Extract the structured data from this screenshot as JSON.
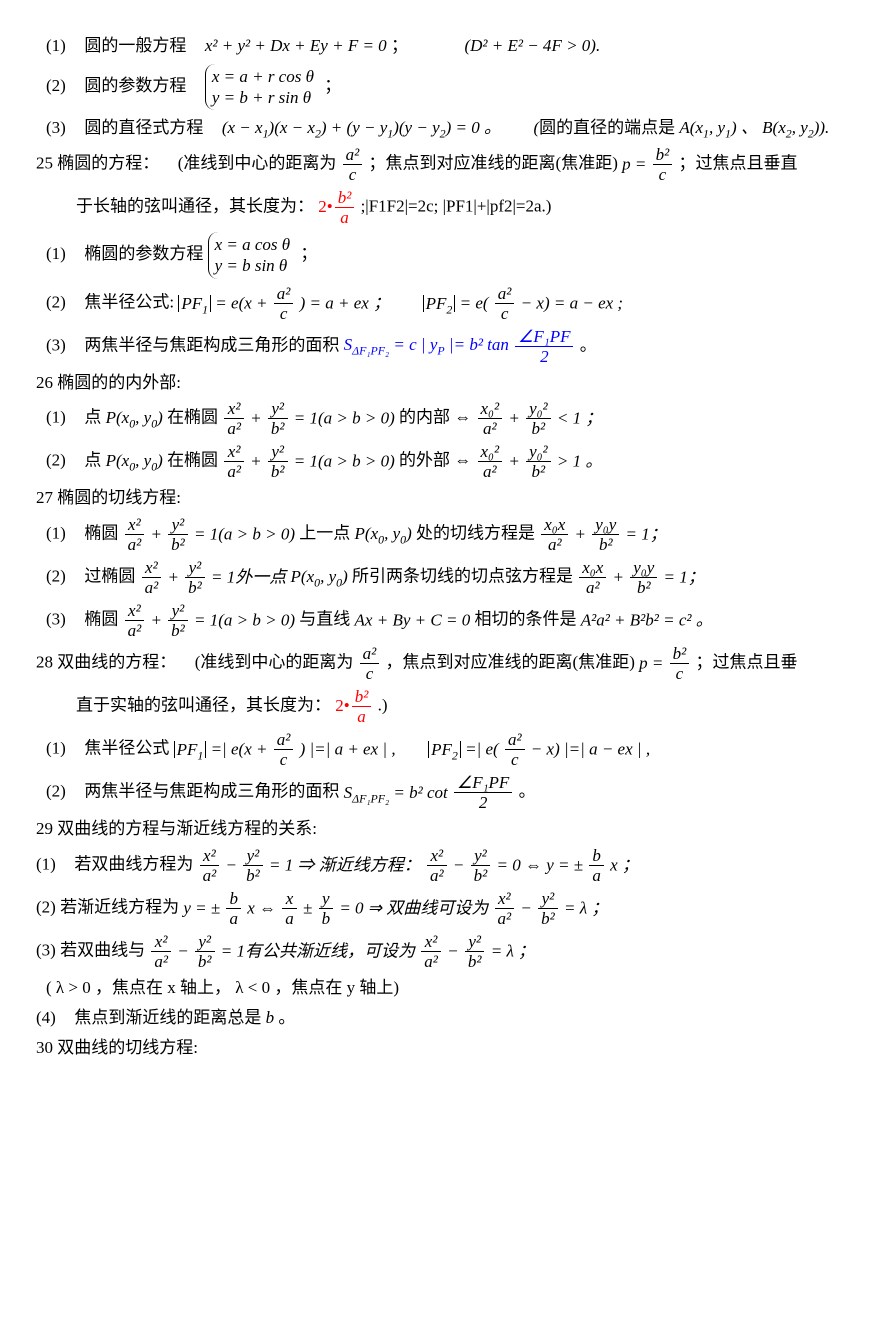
{
  "colors": {
    "text": "#000000",
    "accent_red": "#ff0000",
    "accent_blue": "#0000ff",
    "background": "#ffffff"
  },
  "fonts": {
    "body_family": "SimSun",
    "math_family": "Times New Roman",
    "body_size_pt": 13
  },
  "l1": {
    "prefix": "(1)",
    "label": "圆的一般方程",
    "eq": "x² + y² + Dx + Ey + F = 0",
    "cond": "(D² + E² − 4F > 0)."
  },
  "l2": {
    "prefix": "(2)",
    "label": "圆的参数方程",
    "p1": "x = a + r cos θ",
    "p2": "y = b + r sin θ",
    "tail": "；"
  },
  "l3": {
    "prefix": "(3)",
    "label": "圆的直径式方程",
    "eq": "(x − x₁)(x − x₂) + (y − y₁)(y − y₂) = 0 。",
    "note": "(圆的直径的端点是 A(x₁, y₁) 、 B(x₂, y₂))."
  },
  "s25": {
    "no": "25",
    "t1": "椭圆的方程：",
    "t2a": "(准线到中心的距离为",
    "t2b": "；焦点到对应准线的距离(焦准距)",
    "p": "p =",
    "t2c": "；过焦点且垂直",
    "t3a": "于长轴的弦叫通径，其长度为：",
    "t3b": ";|F1F2|=2c; |PF1|+|pf2|=2a.)",
    "sub1": {
      "prefix": "(1)",
      "label": "椭圆的参数方程",
      "p1": "x = a cos θ",
      "p2": "y = b sin θ",
      "tail": "；"
    },
    "sub2": {
      "prefix": "(2)",
      "label": "焦半径公式:",
      "eq1a": "= e(x +",
      "eq1b": ") = a + ex ；",
      "eq2a": "= e(",
      "eq2b": "− x) = a − ex ;"
    },
    "sub3": {
      "prefix": "(3)",
      "label": "两焦半径与焦距构成三角形的面积",
      "Sname": "S",
      "Ssub": "ΔF₁PF₂",
      "eq": "= c | yP |= b² tan",
      "angnum": "∠F₁PF",
      "angden": "2",
      "tail": "。"
    }
  },
  "s26": {
    "no": "26",
    "title": "椭圆的的内外部:",
    "sub1": {
      "prefix": "(1)",
      "a": "点",
      "P": "P(x₀, y₀)",
      "b": "在椭圆",
      "c": " = 1(a > b > 0)",
      "d": "的内部 ⇔",
      "e": " < 1 ；"
    },
    "sub2": {
      "prefix": "(2)",
      "a": "点",
      "P": "P(x₀, y₀)",
      "b": "在椭圆",
      "c": " = 1(a > b > 0)",
      "d": "的外部 ⇔",
      "e": " > 1 。"
    }
  },
  "s27": {
    "no": "27",
    "title": "椭圆的切线方程:",
    "sub1": {
      "prefix": "(1)",
      "a": "椭圆",
      "b": " = 1(a > b > 0)",
      "c": "上一点",
      "P": "P(x₀, y₀)",
      "d": "处的切线方程是",
      "e": " = 1；"
    },
    "sub2": {
      "prefix": "(2)",
      "a": "过椭圆",
      "b": " = 1外一点",
      "P": "P(x₀, y₀)",
      "c": "所引两条切线的切点弦方程是",
      "e": " = 1；"
    },
    "sub3": {
      "prefix": "(3)",
      "a": "椭圆",
      "b": " = 1(a > b > 0)",
      "c": "与直线",
      "eq": "Ax + By + C = 0",
      "d": "相切的条件是",
      "cond": "A²a² + B²b² = c² 。"
    }
  },
  "s28": {
    "no": "28",
    "t1": "双曲线的方程：",
    "t2a": "(准线到中心的距离为",
    "t2b": "，焦点到对应准线的距离(焦准距)",
    "p": "p =",
    "t2c": "；过焦点且垂",
    "t3a": "直于实轴的弦叫通径，其长度为：",
    "t3b": ".)",
    "sub1": {
      "prefix": "(1)",
      "label": "焦半径公式",
      "eq1a": "=| e(x +",
      "eq1b": ") |=| a + ex | ,",
      "eq2a": "=| e(",
      "eq2b": "− x) |=| a − ex | ,"
    },
    "sub2": {
      "prefix": "(2)",
      "label": "两焦半径与焦距构成三角形的面积",
      "Sname": "S",
      "Ssub": "ΔF₁PF₂",
      "eq": "= b² cot",
      "angnum": "∠F₁PF",
      "angden": "2",
      "tail": "。"
    }
  },
  "s29": {
    "no": "29",
    "title": "双曲线的方程与渐近线方程的关系:",
    "sub1": {
      "prefix": "(1)",
      "a": "若双曲线方程为",
      "b": " = 1 ⇒ 渐近线方程：",
      "c": " = 0 ⇔ ",
      "d": "y = ±",
      "e": "x ；"
    },
    "sub2": {
      "prefix": "(2)",
      "a": "若渐近线方程为",
      "b": "y = ±",
      "c": "x ⇔ ",
      "d": " ± ",
      "e": " = 0 ⇒ 双曲线可设为",
      "f": " = λ ；"
    },
    "sub3": {
      "prefix": "(3)",
      "a": "若双曲线与",
      "b": " = 1有公共渐近线，可设为",
      "c": " = λ ；"
    },
    "note": "( λ > 0 ，焦点在 x 轴上， λ < 0 ，焦点在 y 轴上)",
    "sub4": {
      "prefix": "(4)",
      "text": "焦点到渐近线的距离总是 b 。"
    }
  },
  "s30": {
    "no": "30",
    "title": "双曲线的切线方程:"
  },
  "frac": {
    "a2c": {
      "num": "a²",
      "den": "c"
    },
    "b2c": {
      "num": "b²",
      "den": "c"
    },
    "b2a": {
      "num": "b²",
      "den": "a"
    },
    "x2a2": {
      "num": "x²",
      "den": "a²"
    },
    "y2b2": {
      "num": "y²",
      "den": "b²"
    },
    "x02a2": {
      "num": "x₀²",
      "den": "a²"
    },
    "y02b2": {
      "num": "y₀²",
      "den": "b²"
    },
    "x0xa2": {
      "num": "x₀x",
      "den": "a²"
    },
    "y0yb2": {
      "num": "y₀y",
      "den": "b²"
    },
    "ba": {
      "num": "b",
      "den": "a"
    },
    "xa": {
      "num": "x",
      "den": "a"
    },
    "yb": {
      "num": "y",
      "den": "b"
    }
  }
}
